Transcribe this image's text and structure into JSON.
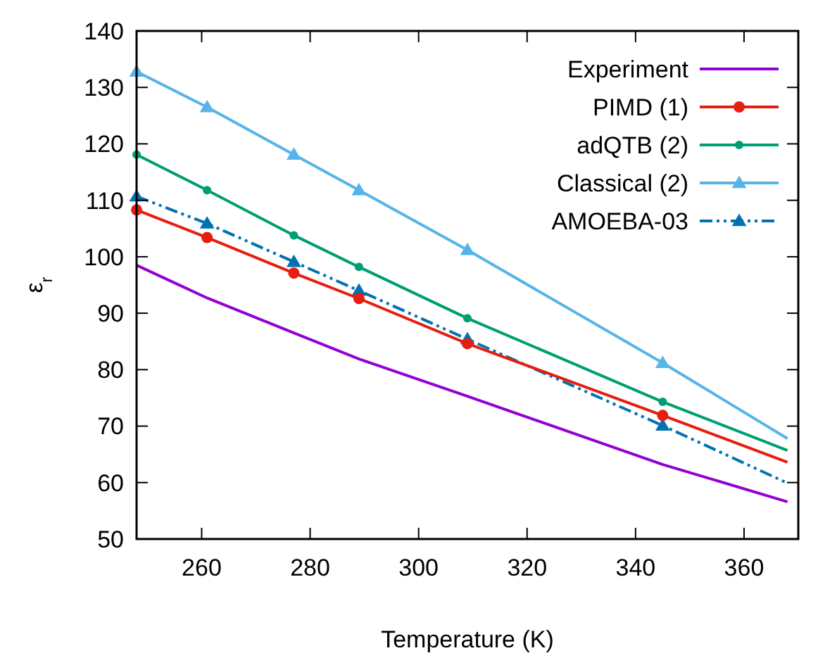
{
  "chart_data": {
    "type": "line",
    "xlabel": "Temperature (K)",
    "ylabel": "ε$_{r}$",
    "xlim": [
      248,
      370
    ],
    "ylim": [
      50,
      140
    ],
    "xticks": [
      260,
      280,
      300,
      320,
      340,
      360
    ],
    "yticks": [
      50,
      60,
      70,
      80,
      90,
      100,
      110,
      120,
      130,
      140
    ],
    "grid": false,
    "legend": "top right",
    "series": [
      {
        "name": "Experiment",
        "color": "#9400d3",
        "marker": "none",
        "line_style": "solid",
        "x": [
          248,
          261,
          277,
          289,
          309,
          345,
          368
        ],
        "values": [
          98.5,
          92.7,
          86.5,
          81.9,
          75.3,
          63.2,
          56.6
        ]
      },
      {
        "name": "PIMD (1)",
        "color": "#e51e10",
        "marker": "circle",
        "line_style": "solid",
        "x": [
          248,
          261,
          277,
          289,
          309,
          345,
          368
        ],
        "values": [
          108.3,
          103.4,
          97.1,
          92.6,
          84.6,
          71.9,
          63.6
        ]
      },
      {
        "name": "adQTB (2)",
        "color": "#009e73",
        "marker": "circle",
        "line_style": "solid",
        "x": [
          248,
          261,
          277,
          289,
          309,
          345,
          368
        ],
        "values": [
          118.1,
          111.8,
          103.8,
          98.2,
          89.1,
          74.3,
          65.7
        ]
      },
      {
        "name": "Classical (2)",
        "color": "#56b4e9",
        "marker": "triangle",
        "line_style": "solid",
        "x": [
          248,
          261,
          277,
          289,
          309,
          345,
          368
        ],
        "values": [
          132.8,
          126.5,
          118.1,
          111.8,
          101.2,
          81.2,
          67.8
        ]
      },
      {
        "name": "AMOEBA-03",
        "color": "#0072b2",
        "marker": "triangle",
        "line_style": "dashdot",
        "x": [
          248,
          261,
          277,
          289,
          309,
          345,
          368
        ],
        "values": [
          110.7,
          105.9,
          99.1,
          94.0,
          85.4,
          70.1,
          59.9
        ]
      }
    ]
  }
}
